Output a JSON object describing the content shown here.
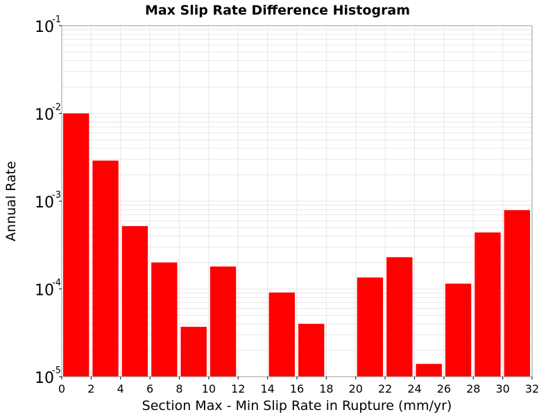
{
  "chart_data": {
    "type": "bar",
    "title": "Max Slip Rate Difference Histogram",
    "xlabel": "Section Max - Min Slip Rate in Rupture (mm/yr)",
    "ylabel": "Annual Rate",
    "xlim": [
      0,
      32
    ],
    "ylim": [
      1e-05,
      0.1
    ],
    "yscale": "log",
    "x_ticks": [
      "0",
      "2",
      "4",
      "6",
      "8",
      "10",
      "12",
      "14",
      "16",
      "18",
      "20",
      "22",
      "24",
      "26",
      "28",
      "30",
      "32"
    ],
    "y_ticks": [
      {
        "base": "10",
        "exp": "-5",
        "value": 1e-05
      },
      {
        "base": "10",
        "exp": "-4",
        "value": 0.0001
      },
      {
        "base": "10",
        "exp": "-3",
        "value": 0.001
      },
      {
        "base": "10",
        "exp": "-2",
        "value": 0.01
      },
      {
        "base": "10",
        "exp": "-1",
        "value": 0.1
      }
    ],
    "grid": true,
    "bin_width": 2,
    "bars": [
      {
        "x": 1,
        "value": 0.01
      },
      {
        "x": 3,
        "value": 0.0029
      },
      {
        "x": 5,
        "value": 0.00052
      },
      {
        "x": 7,
        "value": 0.0002
      },
      {
        "x": 9,
        "value": 3.7e-05
      },
      {
        "x": 11,
        "value": 0.00018
      },
      {
        "x": 13,
        "value": 0
      },
      {
        "x": 15,
        "value": 9.1e-05
      },
      {
        "x": 17,
        "value": 4e-05
      },
      {
        "x": 19,
        "value": 0
      },
      {
        "x": 21,
        "value": 0.000135
      },
      {
        "x": 23,
        "value": 0.00023
      },
      {
        "x": 25,
        "value": 1.4e-05
      },
      {
        "x": 27,
        "value": 0.000115
      },
      {
        "x": 29,
        "value": 0.00044
      },
      {
        "x": 31,
        "value": 0.00079
      }
    ],
    "colors": {
      "bar": "#ff0000",
      "grid": "#e6e6e6",
      "frame": "#999999"
    }
  }
}
